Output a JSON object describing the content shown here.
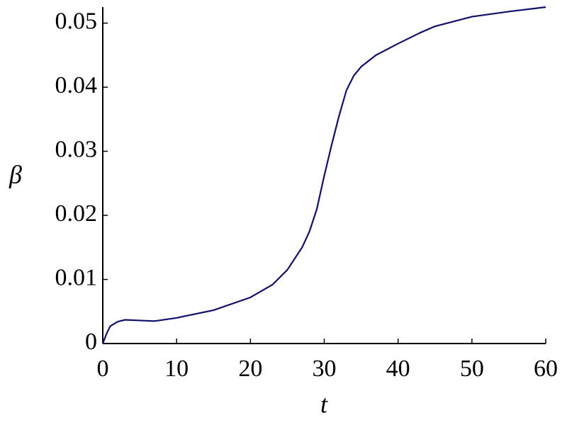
{
  "chart_data": {
    "type": "line",
    "x_label": "t",
    "y_label": "β",
    "x": [
      0,
      0.5,
      1,
      2,
      3,
      5,
      7,
      10,
      15,
      20,
      23,
      25,
      27,
      28,
      29,
      30,
      31,
      32,
      33,
      34,
      35,
      37,
      40,
      43,
      45,
      50,
      55,
      60
    ],
    "series": [
      {
        "color": "#10106a",
        "values": [
          0,
          0.0015,
          0.0027,
          0.0034,
          0.0037,
          0.0036,
          0.0035,
          0.004,
          0.0052,
          0.0072,
          0.0092,
          0.0115,
          0.015,
          0.0175,
          0.021,
          0.0262,
          0.031,
          0.0355,
          0.0395,
          0.0418,
          0.0432,
          0.045,
          0.0468,
          0.0485,
          0.0495,
          0.051,
          0.0518,
          0.0525
        ]
      }
    ],
    "xlim": [
      0,
      60
    ],
    "xticks": [
      0,
      10,
      20,
      30,
      40,
      50,
      60
    ],
    "ylim": [
      0,
      0.0525
    ],
    "yticks": [
      0,
      0.01,
      0.02,
      0.03,
      0.04,
      0.05
    ]
  }
}
